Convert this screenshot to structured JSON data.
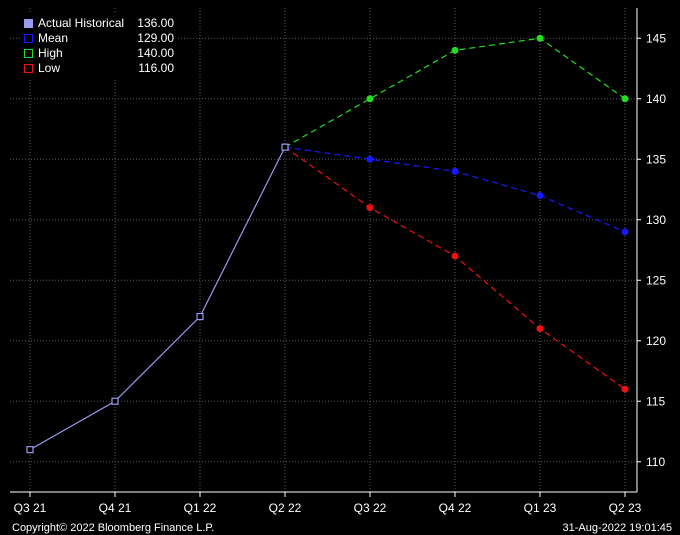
{
  "chart_data": {
    "type": "line",
    "categories": [
      "Q3 21",
      "Q4 21",
      "Q1 22",
      "Q2 22",
      "Q3 22",
      "Q4 22",
      "Q1 23",
      "Q2 23"
    ],
    "ylim": [
      107.5,
      147.5
    ],
    "yticks": [
      110,
      115,
      120,
      125,
      130,
      135,
      140,
      145
    ],
    "grid": true,
    "legend_position": "top-left",
    "series": [
      {
        "name": "Actual Historical",
        "legend_value": "136.00",
        "color": "#9a9af0",
        "style": "solid",
        "marker": "hollow-square",
        "values": [
          111,
          115,
          122,
          136,
          null,
          null,
          null,
          null
        ]
      },
      {
        "name": "Mean",
        "legend_value": "129.00",
        "color": "#1818ff",
        "style": "dashed",
        "marker": "dot",
        "values": [
          null,
          null,
          null,
          136,
          135,
          134,
          132,
          129
        ]
      },
      {
        "name": "High",
        "legend_value": "140.00",
        "color": "#22dd22",
        "style": "dashed",
        "marker": "dot",
        "values": [
          null,
          null,
          null,
          136,
          140,
          144,
          145,
          140
        ]
      },
      {
        "name": "Low",
        "legend_value": "116.00",
        "color": "#ee1111",
        "style": "dashed",
        "marker": "dot",
        "values": [
          null,
          null,
          null,
          136,
          131,
          127,
          121,
          116
        ]
      }
    ]
  },
  "footer": {
    "copyright": "Copyright© 2022 Bloomberg Finance L.P.",
    "timestamp": "31-Aug-2022 19:01:45"
  }
}
